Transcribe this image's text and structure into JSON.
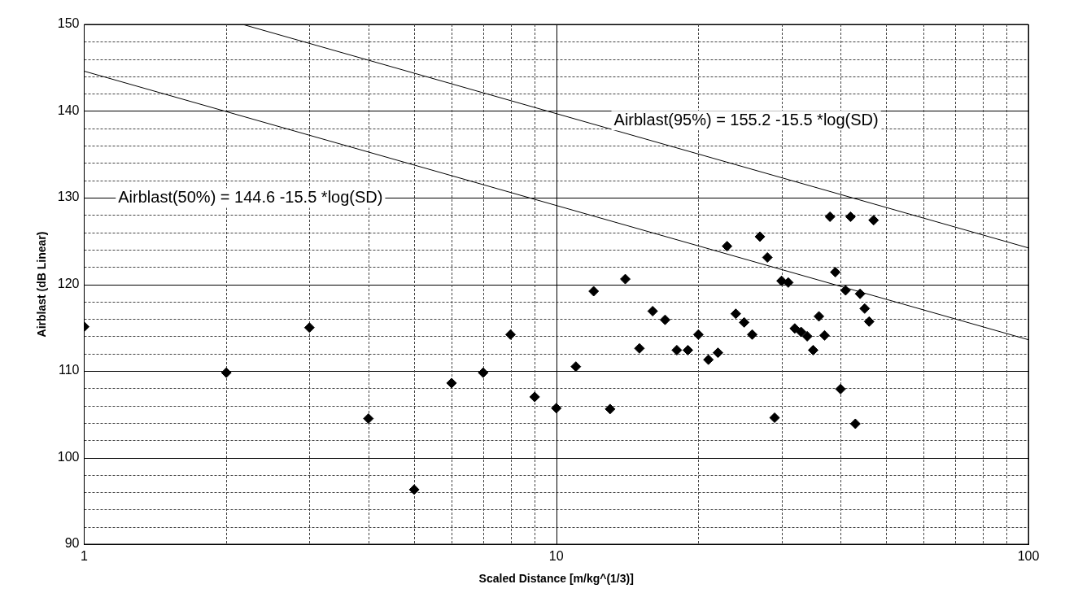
{
  "chart_data": {
    "type": "scatter",
    "xlabel": "Scaled Distance [m/kg^(1/3)]",
    "ylabel": "Airblast (dB Linear)",
    "log": "x",
    "grid": true,
    "legend": false,
    "xlim": [
      1,
      100
    ],
    "ylim": [
      90,
      150
    ],
    "xticks": [
      1,
      {
        "value": 2,
        "label": null
      },
      {
        "value": 3,
        "label": null
      },
      {
        "value": 4,
        "label": null
      },
      {
        "value": 5,
        "label": null
      },
      {
        "value": 6,
        "label": null
      },
      {
        "value": 7,
        "label": null
      },
      {
        "value": 8,
        "label": null
      },
      {
        "value": 9,
        "label": null
      },
      10,
      {
        "value": 20,
        "label": null
      },
      {
        "value": 30,
        "label": null
      },
      {
        "value": 40,
        "label": null
      },
      {
        "value": 50,
        "label": null
      },
      {
        "value": 60,
        "label": null
      },
      {
        "value": 70,
        "label": null
      },
      {
        "value": 80,
        "label": null
      },
      {
        "value": 90,
        "label": null
      },
      100
    ],
    "yticks": [
      90,
      {
        "value": 92,
        "label": null
      },
      {
        "value": 94,
        "label": null
      },
      {
        "value": 96,
        "label": null
      },
      {
        "value": 98,
        "label": null
      },
      100,
      {
        "value": 102,
        "label": null
      },
      {
        "value": 104,
        "label": null
      },
      {
        "value": 106,
        "label": null
      },
      {
        "value": 108,
        "label": null
      },
      110,
      {
        "value": 112,
        "label": null
      },
      {
        "value": 114,
        "label": null
      },
      {
        "value": 116,
        "label": null
      },
      {
        "value": 118,
        "label": null
      },
      120,
      {
        "value": 122,
        "label": null
      },
      {
        "value": 124,
        "label": null
      },
      {
        "value": 126,
        "label": null
      },
      {
        "value": 128,
        "label": null
      },
      130,
      {
        "value": 132,
        "label": null
      },
      {
        "value": 134,
        "label": null
      },
      {
        "value": 136,
        "label": null
      },
      {
        "value": 138,
        "label": null
      },
      140,
      {
        "value": 142,
        "label": null
      },
      {
        "value": 144,
        "label": null
      },
      {
        "value": 146,
        "label": null
      },
      {
        "value": 148,
        "label": null
      },
      150
    ],
    "series": [
      {
        "type": "scatter",
        "marker": "diamond",
        "color": "#000000",
        "x": [
          1,
          2,
          3,
          4,
          5,
          6,
          7,
          8,
          9,
          10,
          11,
          12,
          13,
          14,
          15,
          16,
          17,
          18,
          19,
          20,
          21,
          22,
          23,
          24,
          25,
          26,
          27,
          28,
          29,
          30,
          31,
          32,
          33,
          34,
          35,
          36,
          37,
          38,
          39,
          40,
          41,
          42,
          43,
          44,
          45,
          46,
          47
        ],
        "values": [
          115.1,
          109.8,
          115.0,
          104.5,
          96.3,
          108.6,
          109.8,
          114.2,
          107.0,
          105.7,
          110.5,
          119.2,
          105.6,
          120.6,
          112.6,
          116.9,
          115.9,
          112.4,
          112.4,
          114.2,
          111.3,
          112.1,
          124.4,
          116.6,
          115.6,
          114.2,
          125.5,
          123.1,
          104.6,
          120.4,
          120.2,
          114.9,
          114.5,
          114.0,
          112.4,
          116.3,
          114.1,
          127.8,
          121.4,
          107.9,
          119.3,
          127.8,
          103.9,
          118.9,
          117.2,
          115.7,
          127.4
        ]
      },
      {
        "type": "line",
        "marker": "none",
        "color": "#000000",
        "x": [
          1,
          100
        ],
        "values": [
          144.6,
          113.6
        ]
      },
      {
        "type": "line",
        "marker": "none",
        "color": "#000000",
        "x": [
          2.166,
          100
        ],
        "values": [
          150,
          124.2
        ]
      }
    ],
    "annotations": [
      "Airblast(50%) = 144.6 -15.5 *log(SD)",
      "Airblast(95%) = 155.2 -15.5 *log(SD)"
    ]
  }
}
